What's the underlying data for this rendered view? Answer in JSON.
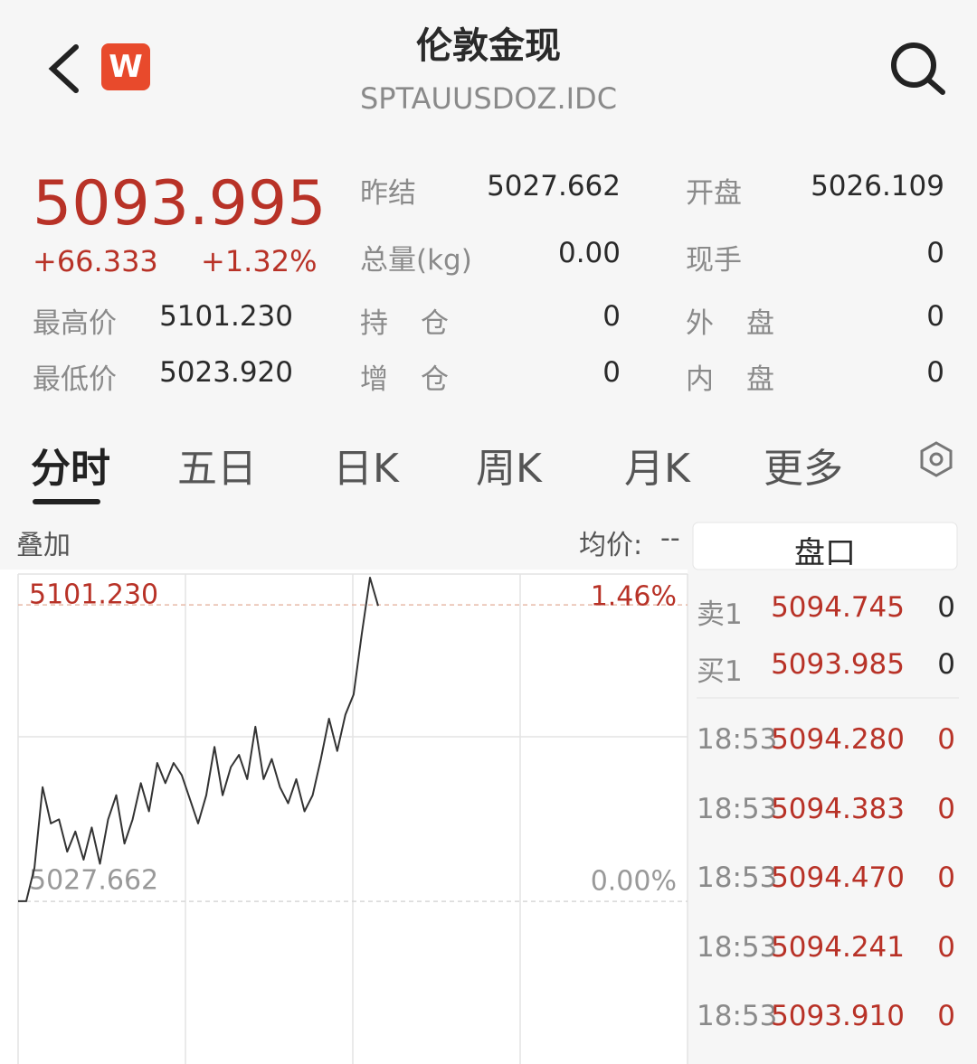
{
  "header": {
    "badge": "W",
    "title": "伦敦金现",
    "code": "SPTAUUSDOZ.IDC"
  },
  "quote": {
    "price": "5093.995",
    "change": "+66.333",
    "change_pct": "+1.32%",
    "stats": [
      {
        "label": "昨结",
        "value": "5027.662"
      },
      {
        "label": "开盘",
        "value": "5026.109"
      },
      {
        "label": "总量(kg)",
        "value": "0.00"
      },
      {
        "label": "现手",
        "value": "0"
      },
      {
        "label": "最高价",
        "value": "5101.230"
      },
      {
        "label": "持仓",
        "value": "0"
      },
      {
        "label": "外盘",
        "value": "0"
      },
      {
        "label": "最低价",
        "value": "5023.920"
      },
      {
        "label": "增仓",
        "value": "0"
      },
      {
        "label": "内盘",
        "value": "0"
      }
    ]
  },
  "tabs": [
    "分时",
    "五日",
    "日K",
    "周K",
    "月K",
    "更多"
  ],
  "chart_data": {
    "type": "line",
    "overlay_label": "叠加",
    "avg_label": "均价:",
    "avg_value": "--",
    "color": "#333333",
    "values": [
      5027.7,
      5027.7,
      5036,
      5056,
      5047,
      5048,
      5040,
      5045,
      5038,
      5046,
      5037,
      5048,
      5054,
      5042,
      5048,
      5057,
      5050,
      5062,
      5057,
      5062,
      5059,
      5053,
      5047,
      5054,
      5066,
      5054,
      5061,
      5064,
      5058,
      5071,
      5058,
      5063,
      5056,
      5052,
      5058,
      5050,
      5054,
      5063,
      5073,
      5065,
      5074,
      5079,
      5094,
      5108,
      5101
    ],
    "ylim": [
      4987.3,
      5108.9
    ],
    "yticks": [
      {
        "value": 5101.23,
        "label": "5101.230"
      },
      {
        "value": 5027.662,
        "label": "5027.662"
      }
    ],
    "y2lim": [
      -0.8,
      1.62
    ],
    "y2ticks": [
      {
        "value": 1.46,
        "label": "1.46%"
      },
      {
        "value": 0,
        "label": "0.00%"
      }
    ]
  },
  "orderbook": {
    "title": "盘口",
    "quotes": [
      {
        "side": "卖1",
        "price": "5094.745",
        "volume": "0"
      },
      {
        "side": "买1",
        "price": "5093.985",
        "volume": "0"
      }
    ],
    "trades": [
      {
        "time": "18:53",
        "price": "5094.280",
        "volume": "0"
      },
      {
        "time": "18:53",
        "price": "5094.383",
        "volume": "0"
      },
      {
        "time": "18:53",
        "price": "5094.470",
        "volume": "0"
      },
      {
        "time": "18:53",
        "price": "5094.241",
        "volume": "0"
      },
      {
        "time": "18:53",
        "price": "5093.910",
        "volume": "0"
      }
    ]
  }
}
